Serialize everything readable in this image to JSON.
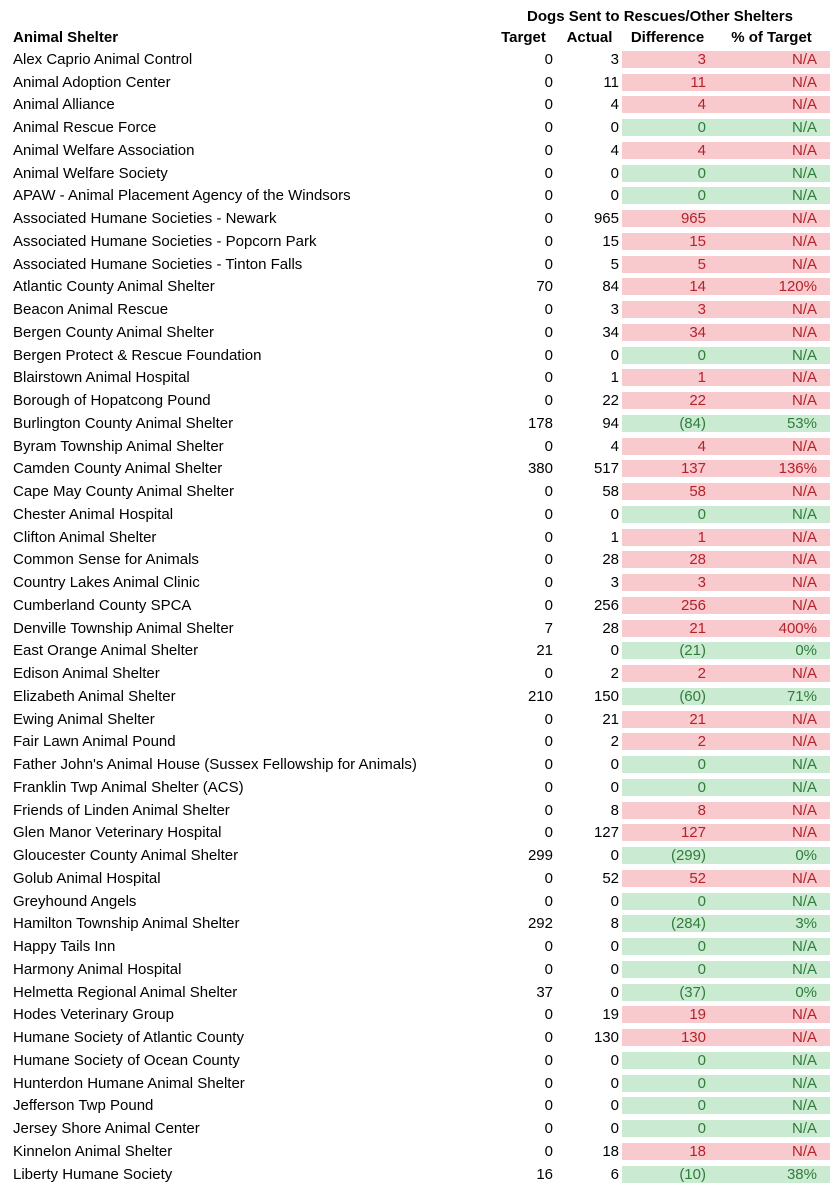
{
  "title": "Dogs Sent to Rescues/Other Shelters",
  "columns": {
    "name": "Animal Shelter",
    "target": "Target",
    "actual": "Actual",
    "difference": "Difference",
    "pct": "% of Target"
  },
  "colors": {
    "bad_bg": "#F8C9CD",
    "bad_text": "#B3232C",
    "good_bg": "#CBEAD2",
    "good_text": "#2E7D3B",
    "text": "#000000",
    "background": "#FFFFFF"
  },
  "rows": [
    {
      "name": "Alex Caprio Animal Control",
      "target": "0",
      "actual": "3",
      "difference": "3",
      "pct": "N/A",
      "status": "bad"
    },
    {
      "name": "Animal Adoption Center",
      "target": "0",
      "actual": "11",
      "difference": "11",
      "pct": "N/A",
      "status": "bad"
    },
    {
      "name": "Animal Alliance",
      "target": "0",
      "actual": "4",
      "difference": "4",
      "pct": "N/A",
      "status": "bad"
    },
    {
      "name": "Animal Rescue Force",
      "target": "0",
      "actual": "0",
      "difference": "0",
      "pct": "N/A",
      "status": "good"
    },
    {
      "name": "Animal Welfare Association",
      "target": "0",
      "actual": "4",
      "difference": "4",
      "pct": "N/A",
      "status": "bad"
    },
    {
      "name": "Animal Welfare Society",
      "target": "0",
      "actual": "0",
      "difference": "0",
      "pct": "N/A",
      "status": "good"
    },
    {
      "name": "APAW - Animal Placement Agency of the Windsors",
      "target": "0",
      "actual": "0",
      "difference": "0",
      "pct": "N/A",
      "status": "good"
    },
    {
      "name": "Associated Humane Societies - Newark",
      "target": "0",
      "actual": "965",
      "difference": "965",
      "pct": "N/A",
      "status": "bad"
    },
    {
      "name": "Associated Humane Societies - Popcorn Park",
      "target": "0",
      "actual": "15",
      "difference": "15",
      "pct": "N/A",
      "status": "bad"
    },
    {
      "name": "Associated Humane Societies - Tinton Falls",
      "target": "0",
      "actual": "5",
      "difference": "5",
      "pct": "N/A",
      "status": "bad"
    },
    {
      "name": "Atlantic County Animal Shelter",
      "target": "70",
      "actual": "84",
      "difference": "14",
      "pct": "120%",
      "status": "bad"
    },
    {
      "name": "Beacon Animal Rescue",
      "target": "0",
      "actual": "3",
      "difference": "3",
      "pct": "N/A",
      "status": "bad"
    },
    {
      "name": "Bergen County Animal Shelter",
      "target": "0",
      "actual": "34",
      "difference": "34",
      "pct": "N/A",
      "status": "bad"
    },
    {
      "name": "Bergen Protect & Rescue Foundation",
      "target": "0",
      "actual": "0",
      "difference": "0",
      "pct": "N/A",
      "status": "good"
    },
    {
      "name": "Blairstown Animal Hospital",
      "target": "0",
      "actual": "1",
      "difference": "1",
      "pct": "N/A",
      "status": "bad"
    },
    {
      "name": "Borough of Hopatcong Pound",
      "target": "0",
      "actual": "22",
      "difference": "22",
      "pct": "N/A",
      "status": "bad"
    },
    {
      "name": "Burlington County Animal Shelter",
      "target": "178",
      "actual": "94",
      "difference": "(84)",
      "pct": "53%",
      "status": "good"
    },
    {
      "name": "Byram Township Animal Shelter",
      "target": "0",
      "actual": "4",
      "difference": "4",
      "pct": "N/A",
      "status": "bad"
    },
    {
      "name": "Camden County Animal Shelter",
      "target": "380",
      "actual": "517",
      "difference": "137",
      "pct": "136%",
      "status": "bad"
    },
    {
      "name": "Cape May County Animal Shelter",
      "target": "0",
      "actual": "58",
      "difference": "58",
      "pct": "N/A",
      "status": "bad"
    },
    {
      "name": "Chester Animal Hospital",
      "target": "0",
      "actual": "0",
      "difference": "0",
      "pct": "N/A",
      "status": "good"
    },
    {
      "name": "Clifton Animal Shelter",
      "target": "0",
      "actual": "1",
      "difference": "1",
      "pct": "N/A",
      "status": "bad"
    },
    {
      "name": "Common Sense for Animals",
      "target": "0",
      "actual": "28",
      "difference": "28",
      "pct": "N/A",
      "status": "bad"
    },
    {
      "name": "Country Lakes Animal Clinic",
      "target": "0",
      "actual": "3",
      "difference": "3",
      "pct": "N/A",
      "status": "bad"
    },
    {
      "name": "Cumberland County SPCA",
      "target": "0",
      "actual": "256",
      "difference": "256",
      "pct": "N/A",
      "status": "bad"
    },
    {
      "name": "Denville Township Animal Shelter",
      "target": "7",
      "actual": "28",
      "difference": "21",
      "pct": "400%",
      "status": "bad"
    },
    {
      "name": "East Orange Animal Shelter",
      "target": "21",
      "actual": "0",
      "difference": "(21)",
      "pct": "0%",
      "status": "good"
    },
    {
      "name": "Edison Animal Shelter",
      "target": "0",
      "actual": "2",
      "difference": "2",
      "pct": "N/A",
      "status": "bad"
    },
    {
      "name": "Elizabeth Animal Shelter",
      "target": "210",
      "actual": "150",
      "difference": "(60)",
      "pct": "71%",
      "status": "good"
    },
    {
      "name": "Ewing Animal Shelter",
      "target": "0",
      "actual": "21",
      "difference": "21",
      "pct": "N/A",
      "status": "bad"
    },
    {
      "name": "Fair Lawn Animal Pound",
      "target": "0",
      "actual": "2",
      "difference": "2",
      "pct": "N/A",
      "status": "bad"
    },
    {
      "name": "Father John's Animal House (Sussex Fellowship for Animals)",
      "target": "0",
      "actual": "0",
      "difference": "0",
      "pct": "N/A",
      "status": "good"
    },
    {
      "name": "Franklin Twp Animal Shelter (ACS)",
      "target": "0",
      "actual": "0",
      "difference": "0",
      "pct": "N/A",
      "status": "good"
    },
    {
      "name": "Friends of Linden Animal Shelter",
      "target": "0",
      "actual": "8",
      "difference": "8",
      "pct": "N/A",
      "status": "bad"
    },
    {
      "name": "Glen Manor Veterinary Hospital",
      "target": "0",
      "actual": "127",
      "difference": "127",
      "pct": "N/A",
      "status": "bad"
    },
    {
      "name": "Gloucester County Animal Shelter",
      "target": "299",
      "actual": "0",
      "difference": "(299)",
      "pct": "0%",
      "status": "good"
    },
    {
      "name": "Golub Animal Hospital",
      "target": "0",
      "actual": "52",
      "difference": "52",
      "pct": "N/A",
      "status": "bad"
    },
    {
      "name": "Greyhound Angels",
      "target": "0",
      "actual": "0",
      "difference": "0",
      "pct": "N/A",
      "status": "good"
    },
    {
      "name": "Hamilton Township Animal Shelter",
      "target": "292",
      "actual": "8",
      "difference": "(284)",
      "pct": "3%",
      "status": "good"
    },
    {
      "name": "Happy Tails Inn",
      "target": "0",
      "actual": "0",
      "difference": "0",
      "pct": "N/A",
      "status": "good"
    },
    {
      "name": "Harmony Animal Hospital",
      "target": "0",
      "actual": "0",
      "difference": "0",
      "pct": "N/A",
      "status": "good"
    },
    {
      "name": "Helmetta Regional Animal Shelter",
      "target": "37",
      "actual": "0",
      "difference": "(37)",
      "pct": "0%",
      "status": "good"
    },
    {
      "name": "Hodes Veterinary Group",
      "target": "0",
      "actual": "19",
      "difference": "19",
      "pct": "N/A",
      "status": "bad"
    },
    {
      "name": "Humane Society of Atlantic County",
      "target": "0",
      "actual": "130",
      "difference": "130",
      "pct": "N/A",
      "status": "bad"
    },
    {
      "name": "Humane Society of Ocean County",
      "target": "0",
      "actual": "0",
      "difference": "0",
      "pct": "N/A",
      "status": "good"
    },
    {
      "name": "Hunterdon Humane Animal Shelter",
      "target": "0",
      "actual": "0",
      "difference": "0",
      "pct": "N/A",
      "status": "good"
    },
    {
      "name": "Jefferson Twp Pound",
      "target": "0",
      "actual": "0",
      "difference": "0",
      "pct": "N/A",
      "status": "good"
    },
    {
      "name": "Jersey Shore Animal Center",
      "target": "0",
      "actual": "0",
      "difference": "0",
      "pct": "N/A",
      "status": "good"
    },
    {
      "name": "Kinnelon Animal Shelter",
      "target": "0",
      "actual": "18",
      "difference": "18",
      "pct": "N/A",
      "status": "bad"
    },
    {
      "name": "Liberty Humane Society",
      "target": "16",
      "actual": "6",
      "difference": "(10)",
      "pct": "38%",
      "status": "good"
    }
  ]
}
